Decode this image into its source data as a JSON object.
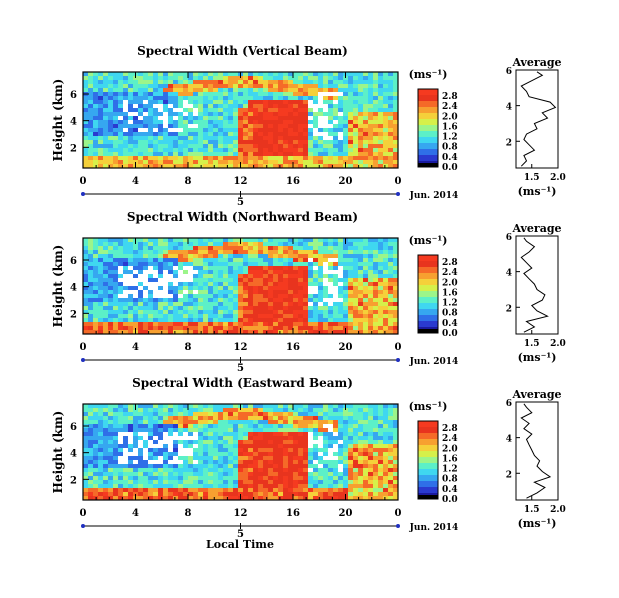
{
  "figure": {
    "shared_xlabel": "Local Time",
    "ylabel": "Height (km)",
    "date_label": "Jun. 2014",
    "day_label": "5",
    "colorbar_unit": "(ms⁻¹)",
    "avg_title": "Average",
    "avg_unit": "(ms⁻¹)",
    "colorscale": [
      "#1a1aa0",
      "#2a3ad0",
      "#2f6fe8",
      "#36a7f0",
      "#3fd7f0",
      "#5cf0c8",
      "#9cf58a",
      "#d6f04a",
      "#f5d03a",
      "#f7a030",
      "#f56a28",
      "#e8341e",
      "#f53a20"
    ]
  },
  "chart_data": [
    {
      "type": "heatmap",
      "title": "Spectral Width (Vertical Beam)",
      "x_ticks": [
        "0",
        "4",
        "8",
        "12",
        "16",
        "20",
        "0"
      ],
      "y_ticks": [
        "2",
        "4",
        "6"
      ],
      "colorbar_ticks": [
        "0.0",
        "0.4",
        "0.8",
        "1.2",
        "1.6",
        "2.0",
        "2.4",
        "2.8"
      ],
      "avg_profile": {
        "xlabel_ticks": [
          "1.5",
          "2.0"
        ],
        "ylabel_ticks": [
          "2",
          "4",
          "6"
        ],
        "xlim": [
          1.2,
          2.0
        ],
        "ylim": [
          0.5,
          6
        ],
        "x": [
          1.3,
          1.4,
          1.35,
          1.55,
          1.45,
          1.35,
          1.4,
          1.6,
          1.55,
          1.8,
          1.7,
          1.95,
          1.85,
          1.45,
          1.4,
          1.3,
          1.5,
          1.7,
          1.6
        ],
        "y": [
          0.6,
          0.9,
          1.2,
          1.5,
          1.8,
          2.1,
          2.4,
          2.7,
          3.0,
          3.3,
          3.6,
          3.9,
          4.2,
          4.5,
          4.8,
          5.1,
          5.4,
          5.7,
          5.9
        ]
      }
    },
    {
      "type": "heatmap",
      "title": "Spectral Width (Northward Beam)",
      "x_ticks": [
        "0",
        "4",
        "8",
        "12",
        "16",
        "20",
        "0"
      ],
      "y_ticks": [
        "2",
        "4",
        "6"
      ],
      "colorbar_ticks": [
        "0.0",
        "0.4",
        "0.8",
        "1.2",
        "1.6",
        "2.0",
        "2.4",
        "2.8"
      ],
      "avg_profile": {
        "xlabel_ticks": [
          "1.5",
          "2.0"
        ],
        "ylabel_ticks": [
          "2",
          "4",
          "6"
        ],
        "xlim": [
          1.2,
          2.0
        ],
        "ylim": [
          0.5,
          6
        ],
        "x": [
          1.35,
          1.55,
          1.4,
          1.8,
          1.6,
          1.5,
          1.7,
          1.75,
          1.6,
          1.55,
          1.45,
          1.35,
          1.5,
          1.4,
          1.3,
          1.45,
          1.55,
          1.4,
          1.35
        ],
        "y": [
          0.6,
          0.9,
          1.2,
          1.5,
          1.8,
          2.1,
          2.4,
          2.7,
          3.0,
          3.3,
          3.6,
          3.9,
          4.2,
          4.5,
          4.8,
          5.1,
          5.4,
          5.7,
          5.9
        ]
      }
    },
    {
      "type": "heatmap",
      "title": "Spectral Width (Eastward Beam)",
      "x_ticks": [
        "0",
        "4",
        "8",
        "12",
        "16",
        "20",
        "0"
      ],
      "y_ticks": [
        "2",
        "4",
        "6"
      ],
      "colorbar_ticks": [
        "0.0",
        "0.4",
        "0.8",
        "1.2",
        "1.6",
        "2.0",
        "2.4",
        "2.8"
      ],
      "avg_profile": {
        "xlabel_ticks": [
          "1.5",
          "2.0"
        ],
        "ylabel_ticks": [
          "2",
          "4",
          "6"
        ],
        "xlim": [
          1.2,
          2.0
        ],
        "ylim": [
          0.5,
          6
        ],
        "x": [
          1.4,
          1.6,
          1.75,
          1.55,
          1.85,
          1.7,
          1.6,
          1.65,
          1.55,
          1.5,
          1.45,
          1.4,
          1.5,
          1.35,
          1.45,
          1.3,
          1.5,
          1.4,
          1.35
        ],
        "y": [
          0.6,
          0.9,
          1.2,
          1.5,
          1.8,
          2.1,
          2.4,
          2.7,
          3.0,
          3.3,
          3.6,
          3.9,
          4.2,
          4.5,
          4.8,
          5.1,
          5.4,
          5.7,
          5.9
        ]
      }
    }
  ]
}
